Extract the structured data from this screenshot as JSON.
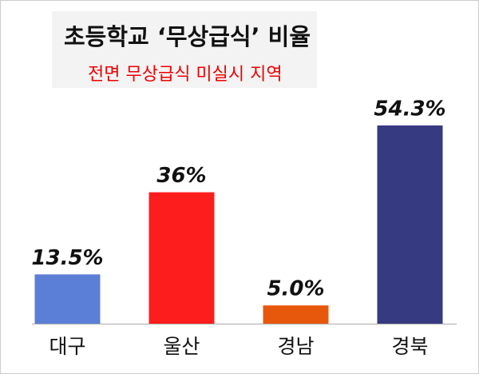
{
  "chart_data": {
    "type": "bar",
    "title": "초등학교 ‘무상급식’ 비율",
    "subtitle": "전면 무상급식 미실시 지역",
    "categories": [
      "대구",
      "울산",
      "경남",
      "경북"
    ],
    "values": [
      13.5,
      36,
      5.0,
      54.3
    ],
    "value_labels": [
      "13.5%",
      "36%",
      "5.0%",
      "54.3%"
    ],
    "colors": [
      "#5b7fd6",
      "#fe1d1d",
      "#e8580c",
      "#363a80"
    ]
  }
}
